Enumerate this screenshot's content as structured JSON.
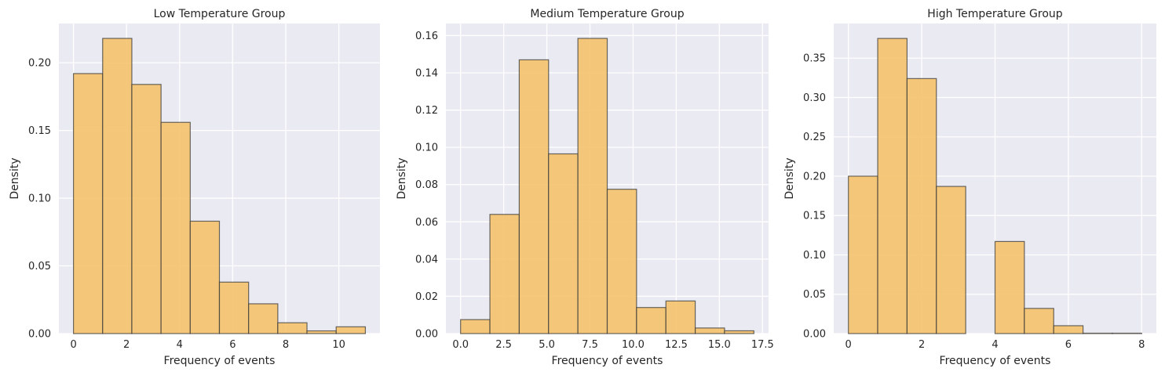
{
  "chart_data": [
    {
      "type": "bar",
      "title": "Low Temperature Group",
      "xlabel": "Frequency of events",
      "ylabel": "Density",
      "bin_edges": [
        0,
        1.1,
        2.2,
        3.3,
        4.4,
        5.5,
        6.6,
        7.7,
        8.8,
        9.9,
        11.0
      ],
      "values": [
        0.192,
        0.218,
        0.184,
        0.156,
        0.083,
        0.038,
        0.022,
        0.008,
        0.002,
        0.005
      ],
      "xlim": [
        -0.55,
        11.55
      ],
      "ylim": [
        0,
        0.229
      ],
      "xticks": [
        0,
        2,
        4,
        6,
        8,
        10
      ],
      "yticks": [
        0.0,
        0.05,
        0.1,
        0.15,
        0.2
      ],
      "xtick_labels": [
        "0",
        "2",
        "4",
        "6",
        "8",
        "10"
      ],
      "ytick_labels": [
        "0.00",
        "0.05",
        "0.10",
        "0.15",
        "0.20"
      ],
      "grid": true,
      "bar_color": "#f5c26b",
      "edge_color": "#3a3a3a",
      "background": "#eaeaf2"
    },
    {
      "type": "bar",
      "title": "Medium Temperature Group",
      "xlabel": "Frequency of events",
      "ylabel": "Density",
      "bin_edges": [
        0,
        1.7,
        3.4,
        5.1,
        6.8,
        8.5,
        10.2,
        11.9,
        13.6,
        15.3,
        17.0
      ],
      "values": [
        0.0075,
        0.064,
        0.147,
        0.0965,
        0.1585,
        0.0775,
        0.014,
        0.0175,
        0.003,
        0.0015
      ],
      "xlim": [
        -0.85,
        17.85
      ],
      "ylim": [
        0,
        0.1665
      ],
      "xticks": [
        0,
        2.5,
        5,
        7.5,
        10,
        12.5,
        15,
        17.5
      ],
      "yticks": [
        0.0,
        0.02,
        0.04,
        0.06,
        0.08,
        0.1,
        0.12,
        0.14,
        0.16
      ],
      "xtick_labels": [
        "0.0",
        "2.5",
        "5.0",
        "7.5",
        "10.0",
        "12.5",
        "15.0",
        "17.5"
      ],
      "ytick_labels": [
        "0.00",
        "0.02",
        "0.04",
        "0.06",
        "0.08",
        "0.10",
        "0.12",
        "0.14",
        "0.16"
      ],
      "grid": true,
      "bar_color": "#f5c26b",
      "edge_color": "#3a3a3a",
      "background": "#eaeaf2"
    },
    {
      "type": "bar",
      "title": "High Temperature Group",
      "xlabel": "Frequency of events",
      "ylabel": "Density",
      "bin_edges": [
        0,
        0.8,
        1.6,
        2.4,
        3.2,
        4.0,
        4.8,
        5.6,
        6.4,
        7.2,
        8.0
      ],
      "values": [
        0.2,
        0.375,
        0.324,
        0.187,
        0.0,
        0.117,
        0.032,
        0.01,
        0.0005,
        0.0005
      ],
      "xlim": [
        -0.4,
        8.4
      ],
      "ylim": [
        0,
        0.394
      ],
      "xticks": [
        0,
        2,
        4,
        6,
        8
      ],
      "yticks": [
        0.0,
        0.05,
        0.1,
        0.15,
        0.2,
        0.25,
        0.3,
        0.35
      ],
      "xtick_labels": [
        "0",
        "2",
        "4",
        "6",
        "8"
      ],
      "ytick_labels": [
        "0.00",
        "0.05",
        "0.10",
        "0.15",
        "0.20",
        "0.25",
        "0.30",
        "0.35"
      ],
      "grid": true,
      "bar_color": "#f5c26b",
      "edge_color": "#3a3a3a",
      "background": "#eaeaf2"
    }
  ]
}
